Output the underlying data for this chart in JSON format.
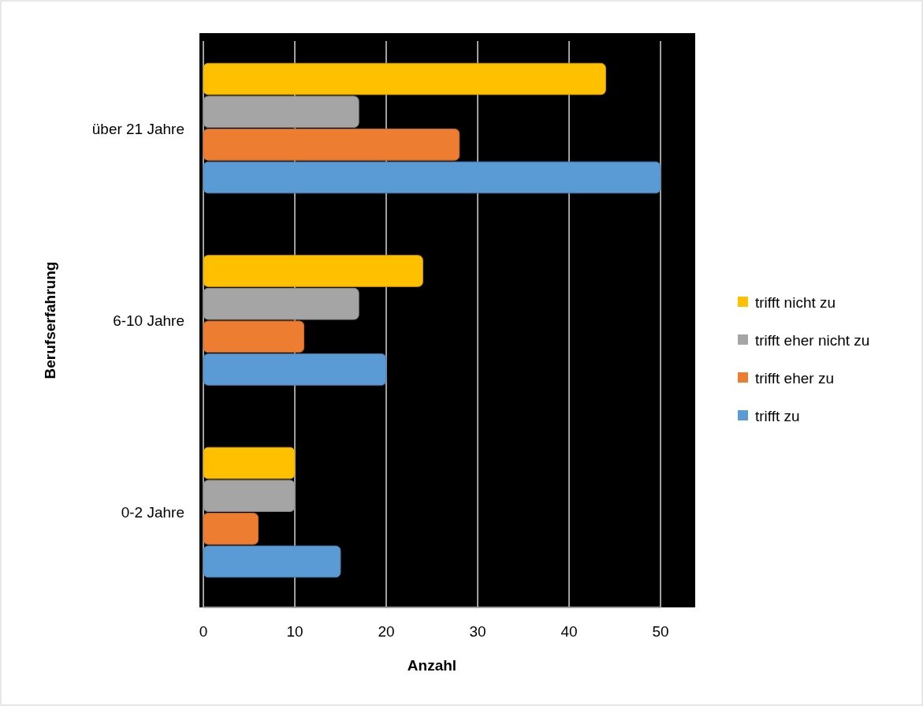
{
  "chart_data": {
    "type": "bar",
    "orientation": "horizontal",
    "xlabel": "Anzahl",
    "ylabel": "Berufserfahrung",
    "categories": [
      "über 21 Jahre",
      "6-10 Jahre",
      "0-2 Jahre"
    ],
    "series": [
      {
        "name": "trifft zu",
        "color": "#5b9bd5",
        "values": [
          50,
          20,
          15
        ]
      },
      {
        "name": "trifft eher zu",
        "color": "#ed7d31",
        "values": [
          28,
          11,
          6
        ]
      },
      {
        "name": "trifft eher nicht zu",
        "color": "#a5a5a5",
        "values": [
          17,
          17,
          10
        ]
      },
      {
        "name": "trifft nicht zu",
        "color": "#ffc000",
        "values": [
          44,
          24,
          10
        ]
      }
    ],
    "xlim": [
      0,
      50
    ],
    "xticks": [
      0,
      10,
      20,
      30,
      40,
      50
    ],
    "grid": "x",
    "legend": "right"
  }
}
